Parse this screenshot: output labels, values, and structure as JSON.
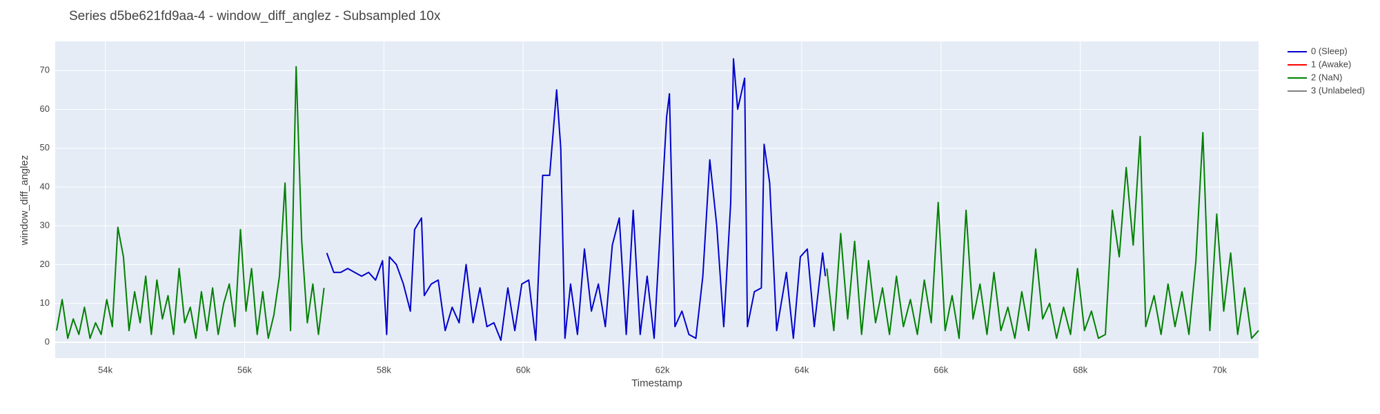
{
  "chart_data": {
    "type": "line",
    "title": "Series d5be621fd9aa-4 - window_diff_anglez - Subsampled 10x",
    "x_label": "Timestamp",
    "y_label": "window_diff_anglez",
    "xlim": [
      53280,
      70560
    ],
    "ylim": [
      -4.1,
      77.5
    ],
    "xticks": [
      {
        "value": 54000,
        "label": "54k"
      },
      {
        "value": 56000,
        "label": "56k"
      },
      {
        "value": 58000,
        "label": "58k"
      },
      {
        "value": 60000,
        "label": "60k"
      },
      {
        "value": 62000,
        "label": "62k"
      },
      {
        "value": 64000,
        "label": "64k"
      },
      {
        "value": 66000,
        "label": "66k"
      },
      {
        "value": 68000,
        "label": "68k"
      },
      {
        "value": 70000,
        "label": "70k"
      }
    ],
    "yticks": [
      0,
      10,
      20,
      30,
      40,
      50,
      60,
      70
    ],
    "grid": true,
    "series": [
      {
        "name": "0 (Sleep)",
        "color": "#0000cc",
        "x": [
          57180,
          57280,
          57380,
          57480,
          57580,
          57680,
          57780,
          57880,
          57980,
          58040,
          58080,
          58180,
          58280,
          58380,
          58440,
          58540,
          58580,
          58680,
          58780,
          58880,
          58980,
          59080,
          59180,
          59280,
          59380,
          59480,
          59580,
          59680,
          59780,
          59880,
          59980,
          60080,
          60180,
          60280,
          60380,
          60480,
          60540,
          60600,
          60680,
          60780,
          60880,
          60980,
          61080,
          61180,
          61280,
          61380,
          61480,
          61580,
          61680,
          61780,
          61880,
          62060,
          62100,
          62180,
          62280,
          62380,
          62480,
          62580,
          62680,
          62780,
          62880,
          62980,
          63020,
          63080,
          63180,
          63220,
          63320,
          63420,
          63460,
          63540,
          63640,
          63780,
          63880,
          63980,
          64080,
          64180,
          64300,
          64340
        ],
        "values": [
          23,
          18,
          18,
          19,
          18,
          17,
          18,
          16,
          21,
          2,
          22,
          20,
          15,
          8,
          29,
          32,
          12,
          15,
          16,
          3,
          9,
          5,
          20,
          5,
          14,
          4,
          5,
          0.5,
          14,
          3,
          15,
          16,
          0.5,
          43,
          43,
          65,
          50,
          1,
          15,
          2,
          24,
          8,
          15,
          4,
          25,
          32,
          2,
          34,
          2,
          17,
          1,
          58,
          64,
          4,
          8,
          2,
          1,
          17,
          47,
          30,
          4,
          36,
          73,
          60,
          68,
          4,
          13,
          14,
          51,
          41,
          3,
          18,
          1,
          22,
          24,
          4,
          23,
          17
        ]
      },
      {
        "name": "1 (Awake)",
        "color": "#ff0000",
        "x": [],
        "values": []
      },
      {
        "name": "2 (NaN)",
        "color": "#008000",
        "x": [
          53300,
          53380,
          53460,
          53540,
          53620,
          53700,
          53780,
          53860,
          53940,
          54020,
          54100,
          54180,
          54260,
          54340,
          54420,
          54500,
          54580,
          54660,
          54740,
          54820,
          54900,
          54980,
          55060,
          55140,
          55220,
          55300,
          55380,
          55460,
          55540,
          55620,
          55700,
          55780,
          55860,
          55940,
          56020,
          56100,
          56180,
          56260,
          56340,
          56420,
          56500,
          56580,
          56660,
          56740,
          56820,
          56900,
          56980,
          57060,
          57140,
          60000,
          64360,
          64460,
          64560,
          64660,
          64760,
          64860,
          64960,
          65060,
          65160,
          65260,
          65360,
          65460,
          65560,
          65660,
          65760,
          65860,
          65960,
          66060,
          66160,
          66260,
          66360,
          66460,
          66560,
          66660,
          66760,
          66860,
          66960,
          67060,
          67160,
          67260,
          67360,
          67460,
          67560,
          67660,
          67760,
          67860,
          67960,
          68060,
          68160,
          68260,
          68360,
          68460,
          68560,
          68660,
          68760,
          68860,
          68940,
          69060,
          69160,
          69260,
          69360,
          69460,
          69560,
          69660,
          69760,
          69860,
          69960,
          70060,
          70160,
          70260,
          70360,
          70460,
          70560
        ],
        "values": [
          3,
          11,
          1,
          6,
          2,
          9,
          1,
          5,
          2,
          11,
          4,
          29.6,
          22,
          3,
          13,
          5,
          17,
          2,
          16,
          6,
          12,
          2,
          19,
          5,
          9,
          1,
          13,
          3,
          14,
          2,
          10,
          15,
          4,
          29,
          8,
          19,
          2,
          13,
          1,
          7,
          17,
          41,
          3,
          71,
          26,
          5,
          15,
          2,
          14,
          null,
          19,
          3,
          28,
          6,
          26,
          2,
          21,
          5,
          14,
          2,
          17,
          4,
          11,
          2,
          16,
          5,
          36,
          3,
          12,
          1,
          34,
          6,
          15,
          2,
          18,
          3,
          9,
          1,
          13,
          3,
          24,
          6,
          10,
          1,
          9,
          2,
          19,
          3,
          8,
          1,
          2,
          34,
          22,
          45,
          25,
          53,
          4,
          12,
          2,
          15,
          4,
          13,
          2,
          21,
          54,
          3,
          33,
          8,
          23,
          2,
          14,
          1,
          3
        ]
      },
      {
        "name": "3 (Unlabeled)",
        "color": "#808080",
        "x": [],
        "values": []
      }
    ]
  }
}
